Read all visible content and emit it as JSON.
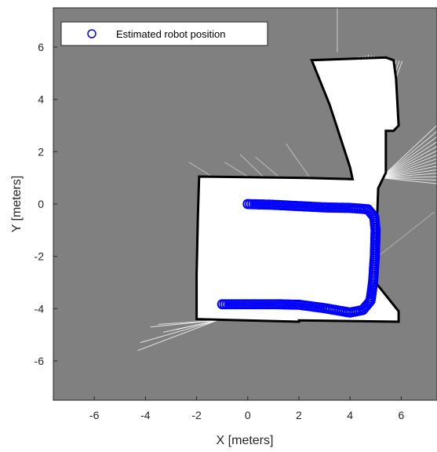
{
  "chart_data": {
    "type": "scatter",
    "title": "",
    "xlabel": "X [meters]",
    "ylabel": "Y [meters]",
    "xlim": [
      -7.6,
      7.4
    ],
    "ylim": [
      -7.5,
      7.5
    ],
    "xticks": [
      -6,
      -4,
      -2,
      0,
      2,
      4,
      6
    ],
    "yticks": [
      6,
      4,
      2,
      0,
      -2,
      -4,
      -6
    ],
    "legend": {
      "label": "Estimated robot position",
      "placement": "top-left"
    },
    "colors": {
      "background": "#808080",
      "free_space": "#ffffff",
      "wall": "#000000",
      "marker": "#0000ff"
    },
    "series": [
      {
        "name": "Estimated robot position",
        "points": [
          [
            0.0,
            0.0
          ],
          [
            1.0,
            -0.03
          ],
          [
            2.0,
            -0.08
          ],
          [
            3.0,
            -0.13
          ],
          [
            4.0,
            -0.15
          ],
          [
            4.7,
            -0.2
          ],
          [
            4.95,
            -0.5
          ],
          [
            5.0,
            -1.0
          ],
          [
            4.97,
            -2.0
          ],
          [
            4.9,
            -3.0
          ],
          [
            4.8,
            -3.7
          ],
          [
            4.5,
            -4.05
          ],
          [
            4.0,
            -4.15
          ],
          [
            3.0,
            -3.98
          ],
          [
            2.0,
            -3.85
          ],
          [
            1.0,
            -3.83
          ],
          [
            0.0,
            -3.83
          ],
          [
            -1.0,
            -3.83
          ]
        ]
      }
    ]
  }
}
